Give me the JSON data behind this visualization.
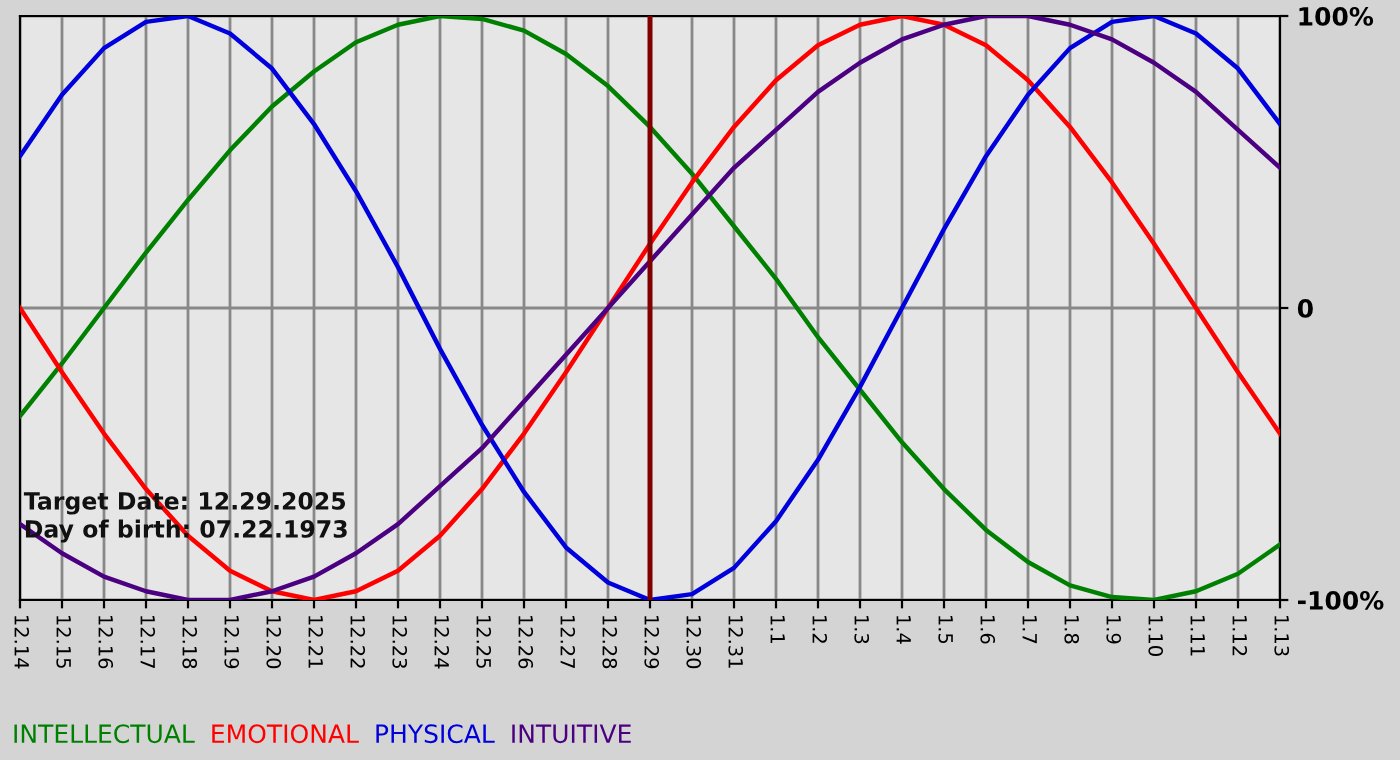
{
  "chart_data": {
    "type": "line",
    "categories": [
      "12.14",
      "12.15",
      "12.16",
      "12.17",
      "12.18",
      "12.19",
      "12.20",
      "12.21",
      "12.22",
      "12.23",
      "12.24",
      "12.25",
      "12.26",
      "12.27",
      "12.28",
      "12.29",
      "12.30",
      "12.31",
      "1.1",
      "1.2",
      "1.3",
      "1.4",
      "1.5",
      "1.6",
      "1.7",
      "1.8",
      "1.9",
      "1.10",
      "1.11",
      "1.12",
      "1.13"
    ],
    "series": [
      {
        "name": "INTELLECTUAL",
        "color": "#008000",
        "values": [
          -37,
          -19,
          0,
          19,
          37,
          54,
          69,
          81,
          91,
          97,
          100,
          99,
          95,
          87,
          76,
          62,
          46,
          28,
          10,
          -10,
          -28,
          -46,
          -62,
          -76,
          -87,
          -95,
          -99,
          -100,
          -97,
          -91,
          -81
        ]
      },
      {
        "name": "EMOTIONAL",
        "color": "#ff0000",
        "values": [
          0,
          -22,
          -43,
          -62,
          -78,
          -90,
          -97,
          -100,
          -97,
          -90,
          -78,
          -62,
          -43,
          -22,
          0,
          22,
          43,
          62,
          78,
          90,
          97,
          100,
          97,
          90,
          78,
          62,
          43,
          22,
          0,
          -22,
          -43
        ]
      },
      {
        "name": "PHYSICAL",
        "color": "#0000dd",
        "values": [
          52,
          73,
          89,
          98,
          100,
          94,
          82,
          63,
          40,
          14,
          -14,
          -40,
          -63,
          -82,
          -94,
          -100,
          -98,
          -89,
          -73,
          -52,
          -27,
          0,
          27,
          52,
          73,
          89,
          98,
          100,
          94,
          82,
          63
        ]
      },
      {
        "name": "INTUITIVE",
        "color": "#4b0082",
        "values": [
          -74,
          -84,
          -92,
          -97,
          -100,
          -100,
          -97,
          -92,
          -84,
          -74,
          -61,
          -48,
          -32,
          -16,
          0,
          16,
          32,
          48,
          61,
          74,
          84,
          92,
          97,
          100,
          100,
          97,
          92,
          84,
          74,
          61,
          48
        ]
      }
    ],
    "ylim": [
      -100,
      100
    ],
    "yticks": [
      {
        "value": 100,
        "label": "100%"
      },
      0,
      {
        "value": -100,
        "label": "-100%"
      }
    ],
    "ref_lines": [
      {
        "axis": "x",
        "value": "12.29",
        "color": "#800000"
      }
    ],
    "annotations": [
      "Target Date: 12.29.2025",
      "Day of birth: 07.22.1973"
    ],
    "grid": true,
    "legend": "bottom left"
  }
}
